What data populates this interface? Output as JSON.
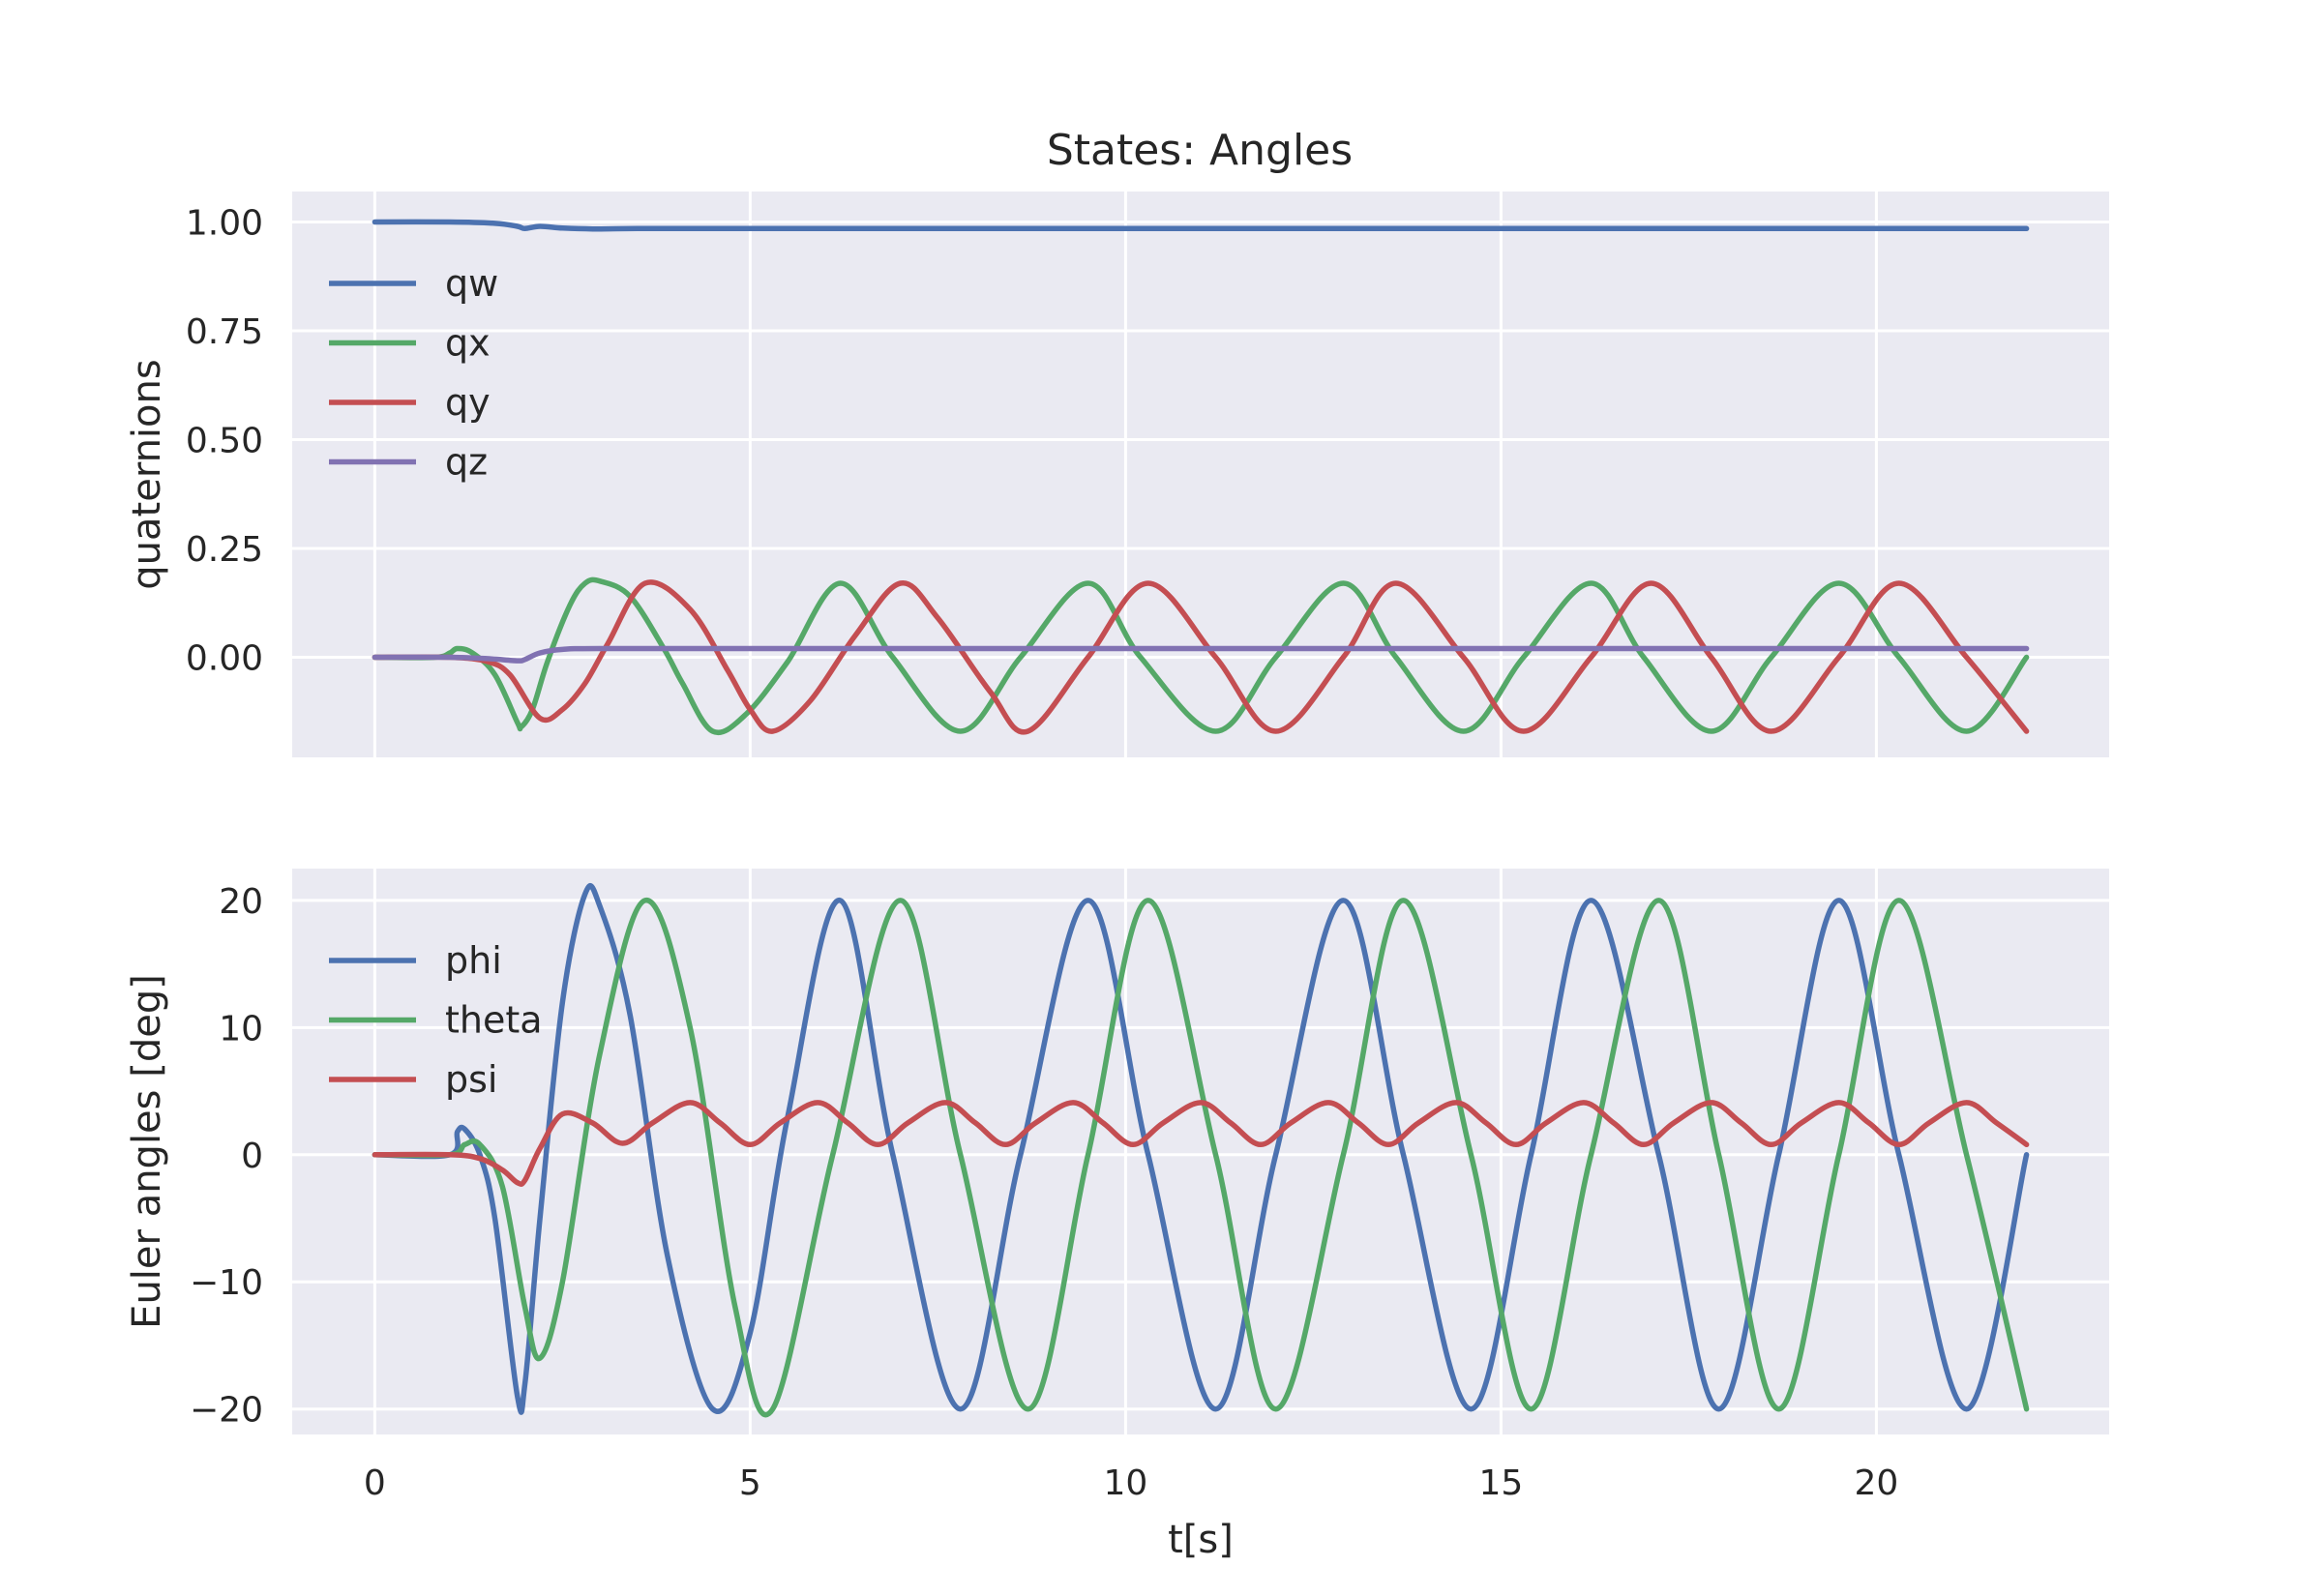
{
  "title": "States: Angles",
  "colors": {
    "axes_bg": "#eaeaf2",
    "grid": "#ffffff",
    "text": "#262626",
    "blue": "#4c72b0",
    "green": "#55a868",
    "red": "#c44e52",
    "purple": "#8172b2"
  },
  "chart_data": [
    {
      "type": "line",
      "ylabel": "quaternions",
      "xlabel": "",
      "xlim": [
        -1.1,
        23.1
      ],
      "ylim": [
        -0.23,
        1.07
      ],
      "xticks": [
        0,
        5,
        10,
        15,
        20
      ],
      "yticks": [
        0.0,
        0.25,
        0.5,
        0.75,
        1.0
      ],
      "ytick_labels": [
        "0.00",
        "0.25",
        "0.50",
        "0.75",
        "1.00"
      ],
      "show_xtick_labels": false,
      "grid": true,
      "legend": "upper-left",
      "series": [
        {
          "name": "qw",
          "color": "#4c72b0",
          "x": [
            0,
            1.0,
            1.6,
            1.9,
            2.0,
            2.2,
            2.5,
            2.9,
            3.5,
            5,
            10,
            15,
            20,
            22
          ],
          "y": [
            1.0,
            1.0,
            0.997,
            0.99,
            0.985,
            0.99,
            0.986,
            0.984,
            0.985,
            0.985,
            0.985,
            0.985,
            0.985,
            0.985
          ]
        },
        {
          "name": "qx",
          "color": "#55a868",
          "x": [
            0,
            0.8,
            1.0,
            1.1,
            1.3,
            1.6,
            1.9,
            1.95,
            2.1,
            2.3,
            2.6,
            2.8,
            3.0,
            3.4,
            3.85,
            4.1,
            4.5,
            4.95,
            5.5,
            6.2,
            6.9,
            7.8,
            8.6,
            9.5,
            10.2,
            11.2,
            12.0,
            12.9,
            13.6,
            14.5,
            15.3,
            16.2,
            16.9,
            17.8,
            18.6,
            19.5,
            20.3,
            21.2,
            22.0
          ],
          "y": [
            0.0,
            0.0,
            0.01,
            0.02,
            0.01,
            -0.04,
            -0.15,
            -0.16,
            -0.12,
            -0.01,
            0.12,
            0.17,
            0.175,
            0.14,
            0.02,
            -0.06,
            -0.17,
            -0.13,
            -0.01,
            0.17,
            0.0,
            -0.17,
            0.0,
            0.17,
            0.0,
            -0.17,
            0.0,
            0.17,
            0.0,
            -0.17,
            0.0,
            0.17,
            0.0,
            -0.17,
            0.0,
            0.17,
            0.0,
            -0.17,
            0.0
          ]
        },
        {
          "name": "qy",
          "color": "#c44e52",
          "x": [
            0,
            1.0,
            1.5,
            1.8,
            2.2,
            2.5,
            2.8,
            3.1,
            3.6,
            4.2,
            4.7,
            5.0,
            5.3,
            5.8,
            6.4,
            7.0,
            7.5,
            8.2,
            8.7,
            9.5,
            10.3,
            11.2,
            12.0,
            12.9,
            13.6,
            14.5,
            15.3,
            16.2,
            17.0,
            17.8,
            18.6,
            19.5,
            20.3,
            21.2,
            22.0
          ],
          "y": [
            0.0,
            0.0,
            -0.01,
            -0.04,
            -0.14,
            -0.12,
            -0.06,
            0.03,
            0.17,
            0.11,
            -0.03,
            -0.12,
            -0.17,
            -0.1,
            0.05,
            0.17,
            0.09,
            -0.08,
            -0.17,
            0.0,
            0.17,
            0.0,
            -0.17,
            0.0,
            0.17,
            0.0,
            -0.17,
            0.0,
            0.17,
            0.0,
            -0.17,
            0.0,
            0.17,
            0.0,
            -0.17
          ]
        },
        {
          "name": "qz",
          "color": "#8172b2",
          "x": [
            0,
            1.0,
            1.5,
            1.9,
            2.0,
            2.2,
            2.5,
            3.0,
            5,
            10,
            15,
            20,
            22
          ],
          "y": [
            0.0,
            0.0,
            -0.003,
            -0.008,
            -0.005,
            0.01,
            0.018,
            0.02,
            0.02,
            0.02,
            0.02,
            0.02,
            0.02
          ]
        }
      ]
    },
    {
      "type": "line",
      "ylabel": "Euler angles [deg]",
      "xlabel": "t[s]",
      "xlim": [
        -1.1,
        23.1
      ],
      "ylim": [
        -22,
        22.5
      ],
      "xticks": [
        0,
        5,
        10,
        15,
        20
      ],
      "xtick_labels": [
        "0",
        "5",
        "10",
        "15",
        "20"
      ],
      "yticks": [
        -20,
        -10,
        0,
        10,
        20
      ],
      "ytick_labels": [
        "−20",
        "−10",
        "0",
        "10",
        "20"
      ],
      "show_xtick_labels": true,
      "grid": true,
      "legend": "upper-left",
      "series": [
        {
          "name": "phi",
          "color": "#4c72b0",
          "x": [
            0,
            1.0,
            1.1,
            1.2,
            1.4,
            1.6,
            1.9,
            2.0,
            2.2,
            2.5,
            2.8,
            3.0,
            3.4,
            3.9,
            4.5,
            5.0,
            5.5,
            6.2,
            6.9,
            7.8,
            8.6,
            9.5,
            10.3,
            11.2,
            12.0,
            12.9,
            13.7,
            14.6,
            15.4,
            16.2,
            17.1,
            17.9,
            18.7,
            19.5,
            20.3,
            21.2,
            22.0
          ],
          "y": [
            0,
            0,
            1.8,
            2.0,
            0,
            -5,
            -19,
            -18,
            -5,
            12,
            20.5,
            19.5,
            11,
            -8,
            -20,
            -14,
            3,
            20,
            0,
            -20,
            0,
            20,
            0,
            -20,
            0,
            20,
            0,
            -20,
            0,
            20,
            0,
            -20,
            0,
            20,
            0,
            -20,
            0
          ]
        },
        {
          "name": "theta",
          "color": "#55a868",
          "x": [
            0,
            1.0,
            1.2,
            1.4,
            1.7,
            2.0,
            2.2,
            2.5,
            3.0,
            3.6,
            4.2,
            4.8,
            5.3,
            6.1,
            7.0,
            7.8,
            8.7,
            9.5,
            10.3,
            11.2,
            12.0,
            12.9,
            13.7,
            14.6,
            15.4,
            16.2,
            17.1,
            17.9,
            18.7,
            19.5,
            20.3,
            21.2,
            22.0
          ],
          "y": [
            0,
            0,
            0.8,
            0.8,
            -2.5,
            -12,
            -16,
            -10,
            8,
            20,
            10,
            -12,
            -20,
            0,
            20,
            0,
            -20,
            0,
            20,
            0,
            -20,
            0,
            20,
            0,
            -20,
            0,
            20,
            0,
            -20,
            0,
            20,
            0,
            -20
          ]
        },
        {
          "name": "psi",
          "color": "#c44e52",
          "x": [
            0,
            1.0,
            1.4,
            1.7,
            1.9,
            2.0,
            2.2,
            2.5,
            2.9,
            3.3,
            3.7,
            4.2,
            4.6,
            5.0,
            5.4,
            5.9,
            6.3,
            6.7,
            7.1,
            7.6,
            8.0,
            8.4,
            8.8,
            9.3,
            9.7,
            10.1,
            10.5,
            11.0,
            11.4,
            11.8,
            12.2,
            12.7,
            13.1,
            13.5,
            13.9,
            14.4,
            14.8,
            15.2,
            15.6,
            16.1,
            16.5,
            16.9,
            17.3,
            17.8,
            18.2,
            18.6,
            19.0,
            19.5,
            19.9,
            20.3,
            20.7,
            21.2,
            21.6,
            22.0
          ],
          "y": [
            0,
            0,
            -0.3,
            -1.2,
            -2.2,
            -2.0,
            0.5,
            3.2,
            2.5,
            0.9,
            2.5,
            4.1,
            2.5,
            0.8,
            2.5,
            4.1,
            2.5,
            0.8,
            2.5,
            4.1,
            2.5,
            0.8,
            2.5,
            4.1,
            2.5,
            0.8,
            2.5,
            4.1,
            2.5,
            0.8,
            2.5,
            4.1,
            2.5,
            0.8,
            2.5,
            4.1,
            2.5,
            0.8,
            2.5,
            4.1,
            2.5,
            0.8,
            2.5,
            4.1,
            2.5,
            0.8,
            2.5,
            4.1,
            2.5,
            0.8,
            2.5,
            4.1,
            2.5,
            0.8
          ]
        }
      ]
    }
  ]
}
